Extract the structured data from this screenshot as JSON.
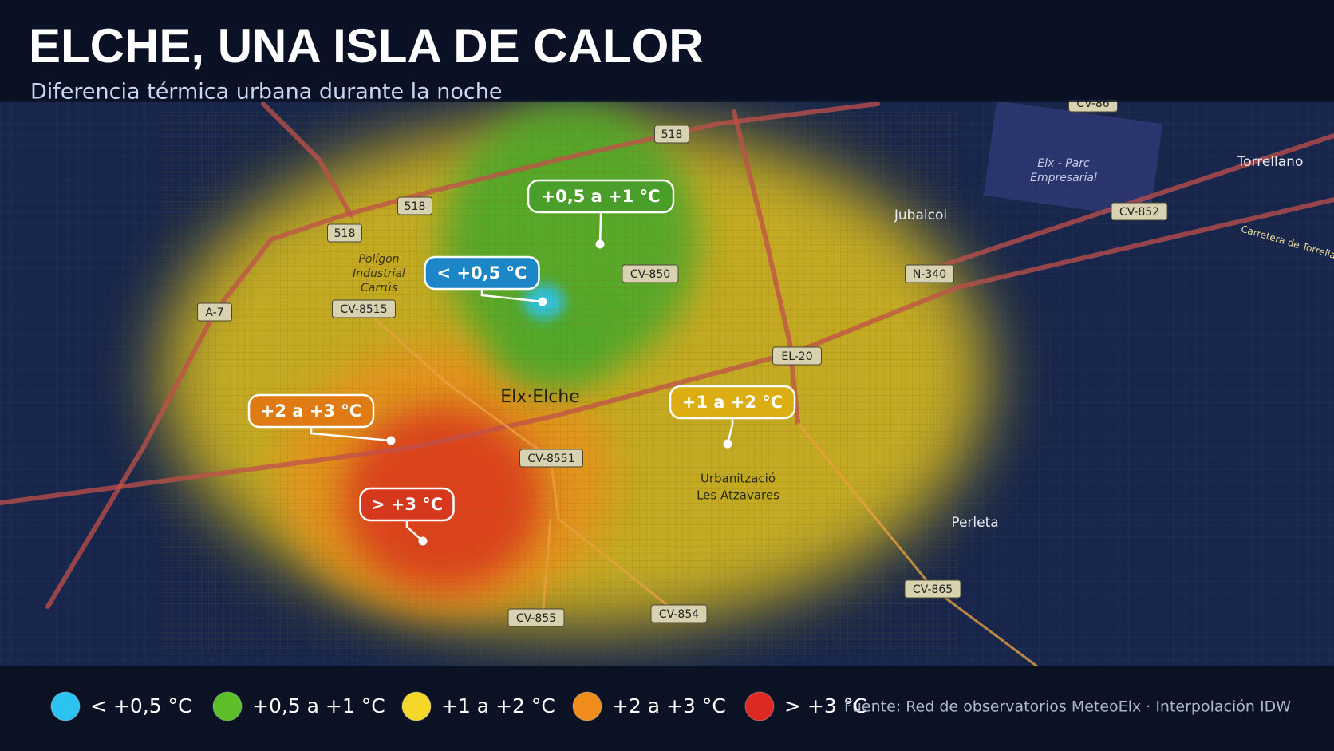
{
  "header": {
    "title": "ELCHE, UNA ISLA DE CALOR",
    "subtitle": "Diferencia térmica urbana durante la noche"
  },
  "map": {
    "places": [
      {
        "lines": [
          "Polígon",
          "Industrial",
          "Carrús"
        ]
      },
      {
        "lines": [
          "Elx·Elche"
        ]
      },
      {
        "lines": [
          "Jubalcoi"
        ]
      },
      {
        "lines": [
          "Torrellano"
        ]
      },
      {
        "lines": [
          "Elx - Parc",
          "Empresarial"
        ]
      },
      {
        "lines": [
          "Urbanització",
          "Les Atzavares"
        ]
      },
      {
        "lines": [
          "Perleta"
        ]
      },
      {
        "lines": [
          "Carretera de Torrellano"
        ]
      }
    ],
    "roads": [
      "518",
      "518",
      "518",
      "A-7",
      "CV-8515",
      "CV-850",
      "N-340",
      "EL-20",
      "CV-8551",
      "CV-855",
      "CV-854",
      "CV-865",
      "CV-852",
      "CV-86"
    ]
  },
  "callouts": [
    {
      "label": "+0,5 a +1 °C",
      "color": "#4a9e2a"
    },
    {
      "label": "< +0,5 °C",
      "color": "#1c86c6"
    },
    {
      "label": "+2 a +3 °C",
      "color": "#e07a12"
    },
    {
      "label": "+1 a +2 °C",
      "color": "#dcae12"
    },
    {
      "label": "> +3 °C",
      "color": "#d6381e"
    }
  ],
  "legend": [
    {
      "label": "< +0,5 °C",
      "color": "#2bc4f0"
    },
    {
      "label": "+0,5 a +1 °C",
      "color": "#5cbf2a"
    },
    {
      "label": "+1 a +2 °C",
      "color": "#f5d72a"
    },
    {
      "label": "+2 a +3 °C",
      "color": "#f08c1c"
    },
    {
      "label": "> +3 °C",
      "color": "#dc2a22"
    }
  ],
  "source": "Fuente: Red de observatorios MeteoElx · Interpolación IDW"
}
